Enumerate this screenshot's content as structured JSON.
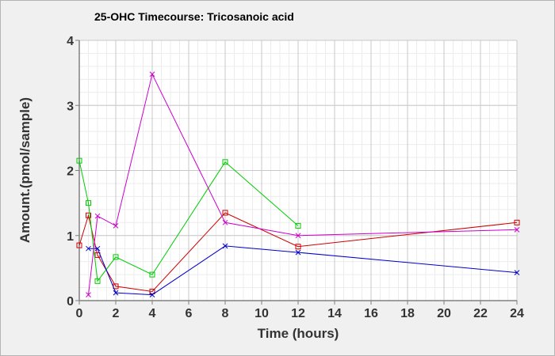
{
  "chart_data": {
    "type": "line",
    "title": "25-OHC Timecourse: Tricosanoic acid",
    "xlabel": "Time (hours)",
    "ylabel": "Amount.(pmol/sample)",
    "xlim": [
      0,
      24
    ],
    "ylim": [
      0,
      4
    ],
    "xticks": [
      0,
      2,
      4,
      6,
      8,
      10,
      12,
      14,
      16,
      18,
      20,
      22,
      24
    ],
    "yticks": [
      0,
      1,
      2,
      3,
      4
    ],
    "grid": true,
    "legend": "none",
    "series": [
      {
        "color": "#cc0000",
        "marker": "square",
        "points": [
          [
            0,
            0.85
          ],
          [
            0.5,
            1.31
          ],
          [
            1,
            0.7
          ],
          [
            2,
            0.22
          ],
          [
            4,
            0.14
          ],
          [
            8,
            1.35
          ],
          [
            12,
            0.83
          ],
          [
            24,
            1.2
          ]
        ]
      },
      {
        "color": "#00cc00",
        "marker": "square",
        "points": [
          [
            0,
            2.15
          ],
          [
            0.5,
            1.5
          ],
          [
            1,
            0.3
          ],
          [
            2,
            0.67
          ],
          [
            4,
            0.4
          ],
          [
            8,
            2.13
          ],
          [
            12,
            1.15
          ]
        ]
      },
      {
        "color": "#0000cc",
        "marker": "x",
        "points": [
          [
            0.5,
            0.8
          ],
          [
            1,
            0.8
          ],
          [
            2,
            0.12
          ],
          [
            4,
            0.09
          ],
          [
            8,
            0.84
          ],
          [
            12,
            0.74
          ],
          [
            24,
            0.43
          ]
        ]
      },
      {
        "color": "#cc00cc",
        "marker": "x",
        "points": [
          [
            0.5,
            0.09
          ],
          [
            1,
            1.3
          ],
          [
            2,
            1.15
          ],
          [
            4,
            3.48
          ],
          [
            8,
            1.2
          ],
          [
            12,
            1.0
          ],
          [
            24,
            1.09
          ]
        ]
      }
    ]
  }
}
